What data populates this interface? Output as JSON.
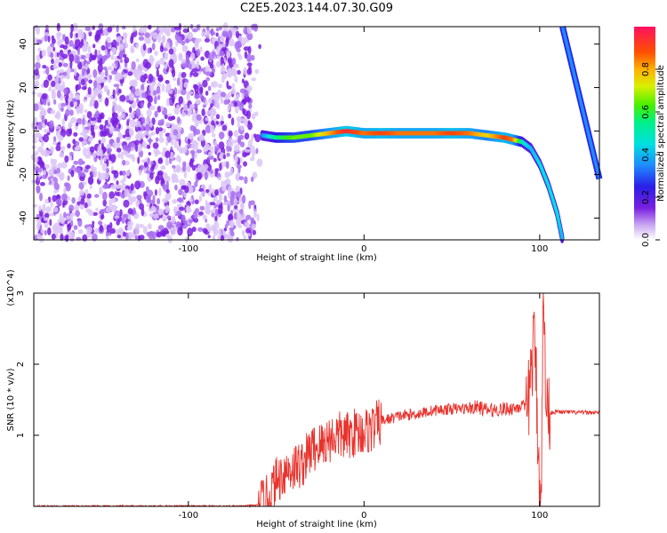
{
  "title": "C2E5.2023.144.07.30.G09",
  "chart_data": [
    {
      "type": "heatmap",
      "xlabel": "Height of straight line (km)",
      "ylabel": "Frequency (Hz)",
      "xlim": [
        -188,
        134
      ],
      "ylim": [
        -50,
        48
      ],
      "xticks": [
        -100,
        0,
        100
      ],
      "yticks": [
        -40,
        -20,
        0,
        20,
        40
      ],
      "colorbar": {
        "label": "Normalized spectral amplitude",
        "ticks": [
          0.0,
          0.2,
          0.4,
          0.6,
          0.8
        ],
        "range": [
          0,
          1
        ]
      },
      "noise_region": {
        "x_from": -188,
        "x_to": -58,
        "freq_range": [
          -50,
          48
        ]
      },
      "signal_ridge": {
        "x": [
          -58,
          -50,
          -40,
          -30,
          -20,
          -10,
          0,
          10,
          20,
          30,
          40,
          50,
          60,
          70,
          80,
          85,
          90,
          95,
          100,
          105,
          110,
          113
        ],
        "freq": [
          -2,
          -3,
          -3,
          -2,
          -1,
          0,
          -1,
          -1,
          -1,
          -1,
          -1,
          -1,
          -1,
          -2,
          -3,
          -4,
          -5,
          -8,
          -15,
          -25,
          -38,
          -50
        ],
        "amplitude": [
          0.35,
          0.55,
          0.65,
          0.65,
          0.8,
          0.95,
          0.85,
          0.9,
          0.85,
          0.85,
          0.85,
          0.9,
          0.85,
          0.75,
          0.9,
          0.85,
          0.5,
          0.4,
          0.45,
          0.45,
          0.45,
          0.4
        ]
      },
      "steep_line": {
        "x": [
          113,
          134
        ],
        "freq": [
          48,
          -22
        ],
        "amplitude": 0.35
      }
    },
    {
      "type": "line",
      "xlabel": "Height of straight line (km)",
      "ylabel": "SNR (10 * v/v)",
      "y_multiplier": "(x10^4)",
      "xlim": [
        -188,
        134
      ],
      "ylim": [
        0,
        3
      ],
      "xticks": [
        -100,
        0,
        100
      ],
      "yticks": [
        1,
        2,
        3
      ],
      "color": "#e8322c",
      "series": [
        {
          "x": [
            -188,
            -150,
            -100,
            -70,
            -60,
            -55,
            -50,
            -45,
            -40,
            -35,
            -30,
            -25,
            -20,
            -15,
            -10,
            -5,
            0,
            5,
            10,
            20,
            30,
            40,
            50,
            60,
            65,
            70,
            80,
            85,
            90,
            93,
            95,
            97,
            98,
            99,
            100,
            101,
            102,
            103,
            104,
            105,
            106,
            110,
            120,
            134
          ],
          "y": [
            0.0,
            0.0,
            0.0,
            0.0,
            0.02,
            0.1,
            0.35,
            0.5,
            0.55,
            0.6,
            0.8,
            0.85,
            0.95,
            1.0,
            0.98,
            1.05,
            1.05,
            1.1,
            1.2,
            1.27,
            1.3,
            1.35,
            1.37,
            1.38,
            1.4,
            1.35,
            1.37,
            1.38,
            1.42,
            1.3,
            1.9,
            2.3,
            1.8,
            0.9,
            0.3,
            0.4,
            2.8,
            2.2,
            1.3,
            1.33,
            1.32,
            1.33,
            1.32,
            1.32
          ]
        }
      ]
    }
  ]
}
